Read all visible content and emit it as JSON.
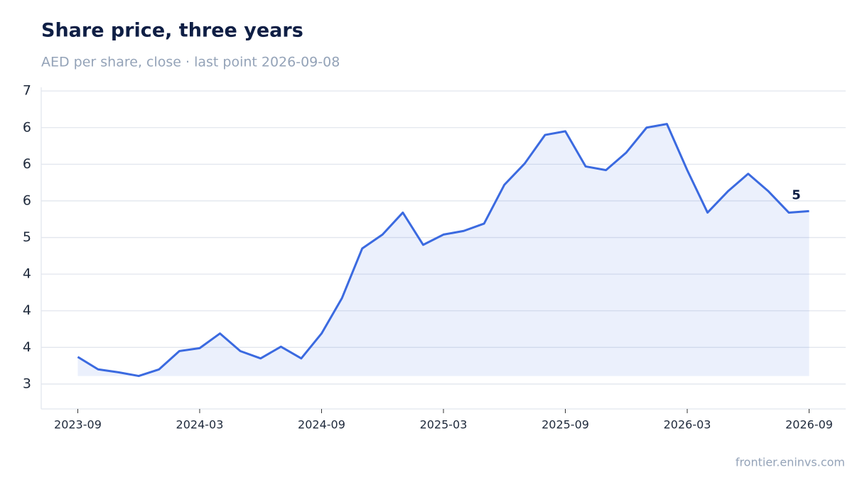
{
  "chart_data": {
    "type": "line",
    "title": "Share price, three years",
    "subtitle": "AED per share, close · last point 2026-09-08",
    "source": "frontier.eninvs.com",
    "x": [
      "2023-09",
      "2023-10",
      "2023-11",
      "2023-12",
      "2024-01",
      "2024-02",
      "2024-03",
      "2024-04",
      "2024-05",
      "2024-06",
      "2024-07",
      "2024-08",
      "2024-09",
      "2024-10",
      "2024-11",
      "2024-12",
      "2025-01",
      "2025-02",
      "2025-03",
      "2025-04",
      "2025-05",
      "2025-06",
      "2025-07",
      "2025-08",
      "2025-09",
      "2025-10",
      "2025-11",
      "2025-12",
      "2026-01",
      "2026-02",
      "2026-03",
      "2026-04",
      "2026-05",
      "2026-06",
      "2026-07",
      "2026-08",
      "2026-09"
    ],
    "series": [
      {
        "name": "Close",
        "color": "#3b6ae0",
        "values": [
          3.37,
          3.2,
          3.16,
          3.11,
          3.2,
          3.45,
          3.49,
          3.69,
          3.45,
          3.35,
          3.51,
          3.35,
          3.69,
          4.17,
          4.85,
          5.04,
          5.34,
          4.9,
          5.04,
          5.09,
          5.19,
          5.72,
          6.01,
          6.4,
          6.45,
          5.97,
          5.92,
          6.16,
          6.5,
          6.55,
          5.92,
          5.34,
          5.63,
          5.87,
          5.63,
          5.34,
          5.36
        ],
        "value_labels": [
          null,
          null,
          null,
          null,
          null,
          null,
          null,
          null,
          null,
          null,
          null,
          null,
          null,
          null,
          null,
          null,
          null,
          null,
          null,
          null,
          null,
          null,
          null,
          null,
          null,
          null,
          null,
          null,
          null,
          null,
          null,
          null,
          null,
          null,
          null,
          null,
          "5"
        ]
      }
    ],
    "xticks": [
      "2023-09",
      "2024-03",
      "2024-09",
      "2025-03",
      "2025-09",
      "2026-03",
      "2026-09"
    ],
    "ylim": [
      2.66,
      7.05
    ],
    "yticks": [
      3,
      {
        "value": 3.5,
        "label": "4"
      },
      4,
      {
        "value": 4.5,
        "label": "4"
      },
      5,
      {
        "value": 5.5,
        "label": "6"
      },
      6,
      {
        "value": 6.5,
        "label": "6"
      },
      7
    ],
    "grid": true,
    "fill": true
  }
}
